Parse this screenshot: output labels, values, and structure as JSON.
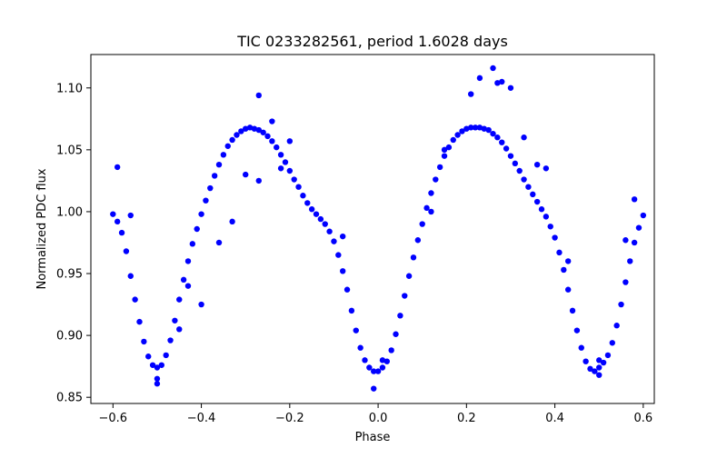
{
  "chart_data": {
    "type": "scatter",
    "title": "TIC 0233282561, period 1.6028 days",
    "xlabel": "Phase",
    "ylabel": "Normalized PDC flux",
    "xlim": [
      -0.65,
      0.625
    ],
    "ylim": [
      0.845,
      1.127
    ],
    "xticks": [
      -0.6,
      -0.4,
      -0.2,
      0.0,
      0.2,
      0.4,
      0.6
    ],
    "xtick_labels": [
      "−0.6",
      "−0.4",
      "−0.2",
      "0.0",
      "0.2",
      "0.4",
      "0.6"
    ],
    "yticks": [
      0.85,
      0.9,
      0.95,
      1.0,
      1.05,
      1.1
    ],
    "ytick_labels": [
      "0.85",
      "0.90",
      "0.95",
      "1.00",
      "1.05",
      "1.10"
    ],
    "grid": false,
    "marker_color": "#0000ff",
    "series": [
      {
        "x": [
          -0.6,
          -0.59,
          -0.58,
          -0.57,
          -0.56,
          -0.55,
          -0.54,
          -0.53,
          -0.52,
          -0.51,
          -0.5,
          -0.49,
          -0.48,
          -0.47,
          -0.46,
          -0.45,
          -0.44,
          -0.43,
          -0.42,
          -0.41,
          -0.4,
          -0.39,
          -0.38,
          -0.37,
          -0.36,
          -0.35,
          -0.34,
          -0.33,
          -0.32,
          -0.31,
          -0.3,
          -0.29,
          -0.28,
          -0.27,
          -0.26,
          -0.25,
          -0.24,
          -0.23,
          -0.22,
          -0.21,
          -0.2,
          -0.19,
          -0.18,
          -0.17,
          -0.16,
          -0.15,
          -0.14,
          -0.13,
          -0.12,
          -0.11,
          -0.1,
          -0.09,
          -0.08,
          -0.07,
          -0.06,
          -0.05,
          -0.04,
          -0.03,
          -0.02,
          -0.01,
          0.0,
          0.01,
          0.02,
          0.03,
          0.04,
          0.05,
          0.06,
          0.07,
          0.08,
          0.09,
          0.1,
          0.11,
          0.12,
          0.13,
          0.14,
          0.15,
          0.16,
          0.17,
          0.18,
          0.19,
          0.2,
          0.21,
          0.22,
          0.23,
          0.24,
          0.25,
          0.26,
          0.27,
          0.28,
          0.29,
          0.3,
          0.31,
          0.32,
          0.33,
          0.34,
          0.35,
          0.36,
          0.37,
          0.38,
          0.39,
          0.4,
          0.41,
          0.42,
          0.43,
          0.44,
          0.45,
          0.46,
          0.47,
          0.48,
          0.49,
          0.5,
          0.51,
          0.52,
          0.53,
          0.54,
          0.55,
          0.56,
          0.57,
          0.58,
          0.59,
          0.6,
          -0.59,
          -0.56,
          -0.5,
          -0.5,
          -0.45,
          -0.43,
          -0.4,
          -0.36,
          -0.33,
          -0.3,
          -0.27,
          -0.27,
          -0.24,
          -0.22,
          -0.2,
          -0.08,
          -0.01,
          0.01,
          0.12,
          0.15,
          0.21,
          0.23,
          0.26,
          0.27,
          0.28,
          0.3,
          0.33,
          0.36,
          0.38,
          0.43,
          0.5,
          0.5,
          0.56,
          0.58
        ],
        "y": [
          0.998,
          0.992,
          0.983,
          0.968,
          0.948,
          0.929,
          0.911,
          0.895,
          0.883,
          0.876,
          0.874,
          0.876,
          0.884,
          0.896,
          0.912,
          0.929,
          0.945,
          0.96,
          0.974,
          0.986,
          0.998,
          1.009,
          1.019,
          1.029,
          1.038,
          1.046,
          1.053,
          1.058,
          1.062,
          1.065,
          1.067,
          1.068,
          1.067,
          1.066,
          1.064,
          1.061,
          1.057,
          1.052,
          1.046,
          1.04,
          1.033,
          1.026,
          1.02,
          1.013,
          1.007,
          1.002,
          0.998,
          0.994,
          0.99,
          0.984,
          0.976,
          0.965,
          0.952,
          0.937,
          0.92,
          0.904,
          0.89,
          0.88,
          0.874,
          0.871,
          0.871,
          0.874,
          0.879,
          0.888,
          0.901,
          0.916,
          0.932,
          0.948,
          0.963,
          0.977,
          0.99,
          1.003,
          1.015,
          1.026,
          1.036,
          1.045,
          1.052,
          1.058,
          1.062,
          1.065,
          1.067,
          1.068,
          1.068,
          1.068,
          1.067,
          1.066,
          1.063,
          1.06,
          1.056,
          1.051,
          1.045,
          1.039,
          1.033,
          1.026,
          1.02,
          1.014,
          1.008,
          1.002,
          0.996,
          0.988,
          0.979,
          0.967,
          0.953,
          0.937,
          0.92,
          0.904,
          0.89,
          0.879,
          0.873,
          0.871,
          0.874,
          0.878,
          0.884,
          0.894,
          0.908,
          0.925,
          0.943,
          0.96,
          0.975,
          0.987,
          0.997,
          1.036,
          0.997,
          0.865,
          0.861,
          0.905,
          0.94,
          0.925,
          0.975,
          0.992,
          1.03,
          1.094,
          1.025,
          1.073,
          1.035,
          1.057,
          0.98,
          0.857,
          0.88,
          1.0,
          1.05,
          1.095,
          1.108,
          1.116,
          1.104,
          1.105,
          1.1,
          1.06,
          1.038,
          1.035,
          0.96,
          0.868,
          0.88,
          0.977,
          1.01
        ]
      }
    ]
  }
}
